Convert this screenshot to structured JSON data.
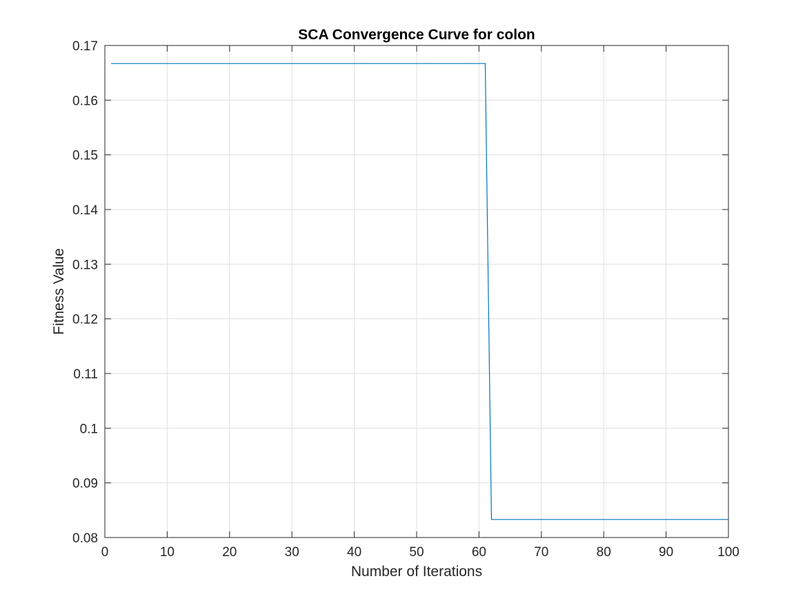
{
  "chart_data": {
    "type": "line",
    "title": "SCA Convergence Curve for colon",
    "xlabel": "Number of Iterations",
    "ylabel": "Fitness Value",
    "xlim": [
      0,
      100
    ],
    "ylim": [
      0.08,
      0.17
    ],
    "xticks": [
      0,
      10,
      20,
      30,
      40,
      50,
      60,
      70,
      80,
      90,
      100
    ],
    "yticks": [
      0.08,
      0.09,
      0.1,
      0.11,
      0.12,
      0.13,
      0.14,
      0.15,
      0.16,
      0.17
    ],
    "xtick_labels": [
      "0",
      "10",
      "20",
      "30",
      "40",
      "50",
      "60",
      "70",
      "80",
      "90",
      "100"
    ],
    "ytick_labels": [
      "0.08",
      "0.09",
      "0.1",
      "0.11",
      "0.12",
      "0.13",
      "0.14",
      "0.15",
      "0.16",
      "0.17"
    ],
    "grid": true,
    "series": [
      {
        "color": "#0072bd",
        "x": [
          1,
          61,
          62,
          100
        ],
        "y": [
          0.1667,
          0.1667,
          0.0833,
          0.0833
        ]
      }
    ]
  }
}
